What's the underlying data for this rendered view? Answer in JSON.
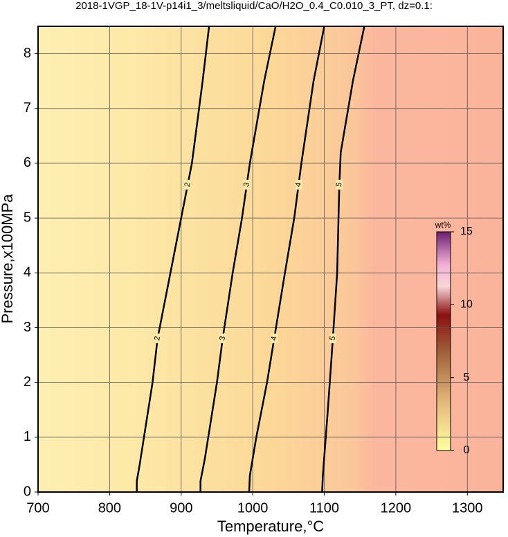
{
  "chart_data": {
    "type": "contour",
    "title": "2018-1VGP_18-1V-p14i1_3/meltsliquid/CaO/H2O_0.4_C0.010_3_PT, dz=0.1:",
    "x_label": "Temperature,°C",
    "y_label": "Pressure,x100MPa",
    "xlim": [
      700,
      1350
    ],
    "xticks": [
      700,
      800,
      900,
      1000,
      1100,
      1200,
      1300
    ],
    "ylim": [
      0,
      8.5
    ],
    "yticks": [
      0,
      1,
      2,
      3,
      4,
      5,
      6,
      7,
      8
    ],
    "grid": true,
    "contours": [
      {
        "level": 2,
        "x": [
          838,
          838,
          842,
          860,
          867,
          885,
          900,
          915,
          930,
          939
        ],
        "y": [
          0,
          0.2,
          0.5,
          2,
          2.8,
          4,
          5,
          6,
          7.5,
          8.5
        ]
      },
      {
        "level": 3,
        "x": [
          927,
          927,
          933,
          950,
          958,
          972,
          985,
          996,
          1016,
          1032
        ],
        "y": [
          0,
          0.2,
          0.6,
          2,
          2.8,
          4,
          5,
          6,
          7.5,
          8.5
        ]
      },
      {
        "level": 4,
        "x": [
          995,
          996,
          1005,
          1020,
          1030,
          1045,
          1058,
          1068,
          1085,
          1100
        ],
        "y": [
          0,
          0.3,
          1,
          2,
          2.8,
          4,
          5,
          6,
          7.5,
          8.5
        ]
      },
      {
        "level": 5,
        "x": [
          1097,
          1098,
          1105,
          1112,
          1118,
          1121,
          1123,
          1140,
          1156
        ],
        "y": [
          0,
          0.3,
          1.5,
          2.8,
          4,
          5.6,
          6.2,
          7.5,
          8.5
        ]
      }
    ],
    "colorbar": {
      "label": "wt%",
      "lim": [
        0,
        15
      ],
      "ticks": [
        0,
        5,
        10,
        15
      ]
    }
  }
}
